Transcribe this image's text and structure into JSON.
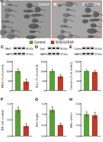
{
  "figure": {
    "panels": [
      {
        "letter": "A",
        "title": "Control"
      },
      {
        "letter": "B",
        "title": "SOD1G93A"
      }
    ],
    "legend": [
      {
        "name": "Control",
        "color": "#5a9e3a"
      },
      {
        "name": "SOD1G93A",
        "color": "#c0392b"
      }
    ]
  },
  "chart_data": [
    {
      "type": "bar",
      "panel": "C",
      "blot": {
        "bands": [
          "Mfn2",
          "GAPDH"
        ],
        "kda": [
          "86 kDa",
          "37 kDa"
        ]
      },
      "ylabel": "Mfn2 (% of control)",
      "categories": [
        "Control",
        "SOD1G93A"
      ],
      "values": [
        100,
        45
      ],
      "errors": [
        12,
        15
      ],
      "colors": [
        "#5a9e3a",
        "#c0392b"
      ],
      "ylim": [
        0,
        150
      ],
      "yticks": [
        0,
        50,
        100,
        150
      ],
      "tick_labels": "y"
    },
    {
      "type": "bar",
      "panel": "D",
      "blot": {
        "bands": [
          "Drp1",
          "GAPDH"
        ],
        "kda": [
          "80 kDa",
          "37 kDa"
        ]
      },
      "ylabel": "Drp1 (% of control)",
      "categories": [
        "Control",
        "SOD1G93A"
      ],
      "values": [
        100,
        72
      ],
      "errors": [
        10,
        12
      ],
      "colors": [
        "#5a9e3a",
        "#c0392b"
      ],
      "ylim": [
        0,
        150
      ],
      "yticks": [
        0,
        50,
        100,
        150
      ],
      "tick_labels": "y"
    },
    {
      "type": "bar",
      "panel": "E",
      "blot": {
        "bands": [
          "Calnexin",
          "GAPDH"
        ],
        "kda": [
          "90 kDa",
          "37 kDa"
        ]
      },
      "ylabel": "Calnexin (% of control)",
      "categories": [
        "Control",
        "SOD1G93A"
      ],
      "values": [
        100,
        95
      ],
      "errors": [
        8,
        10
      ],
      "colors": [
        "#5a9e3a",
        "#c0392b"
      ],
      "ylim": [
        0,
        150
      ],
      "yticks": [
        0,
        50,
        100,
        150
      ],
      "tick_labels": "y"
    },
    {
      "type": "bar",
      "panel": "F",
      "ylabel": "ER-mito contacts",
      "categories": [
        "Control",
        "SOD1G93A"
      ],
      "values": [
        0.8,
        0.3
      ],
      "errors": [
        0.1,
        0.08
      ],
      "colors": [
        "#5a9e3a",
        "#c0392b"
      ],
      "ylim": [
        0,
        1
      ],
      "yticks": [
        0,
        0.5,
        1
      ],
      "tick_labels": "y"
    },
    {
      "type": "bar",
      "panel": "G",
      "ylabel": "Mito length",
      "categories": [
        "Control",
        "SOD1G93A"
      ],
      "values": [
        1.2,
        0.5
      ],
      "errors": [
        0.15,
        0.1
      ],
      "colors": [
        "#5a9e3a",
        "#c0392b"
      ],
      "ylim": [
        0,
        1.5
      ],
      "yticks": [
        0,
        0.5,
        1,
        1.5
      ],
      "tick_labels": "y"
    },
    {
      "type": "bar",
      "panel": "H",
      "ylabel": "Mito number",
      "categories": [
        "Control",
        "SOD1G93A"
      ],
      "values": [
        2,
        1.9
      ],
      "errors": [
        0.25,
        0.3
      ],
      "colors": [
        "#5a9e3a",
        "#c0392b"
      ],
      "ylim": [
        0,
        3
      ],
      "yticks": [
        0,
        1,
        2,
        3
      ],
      "tick_labels": "y"
    }
  ]
}
